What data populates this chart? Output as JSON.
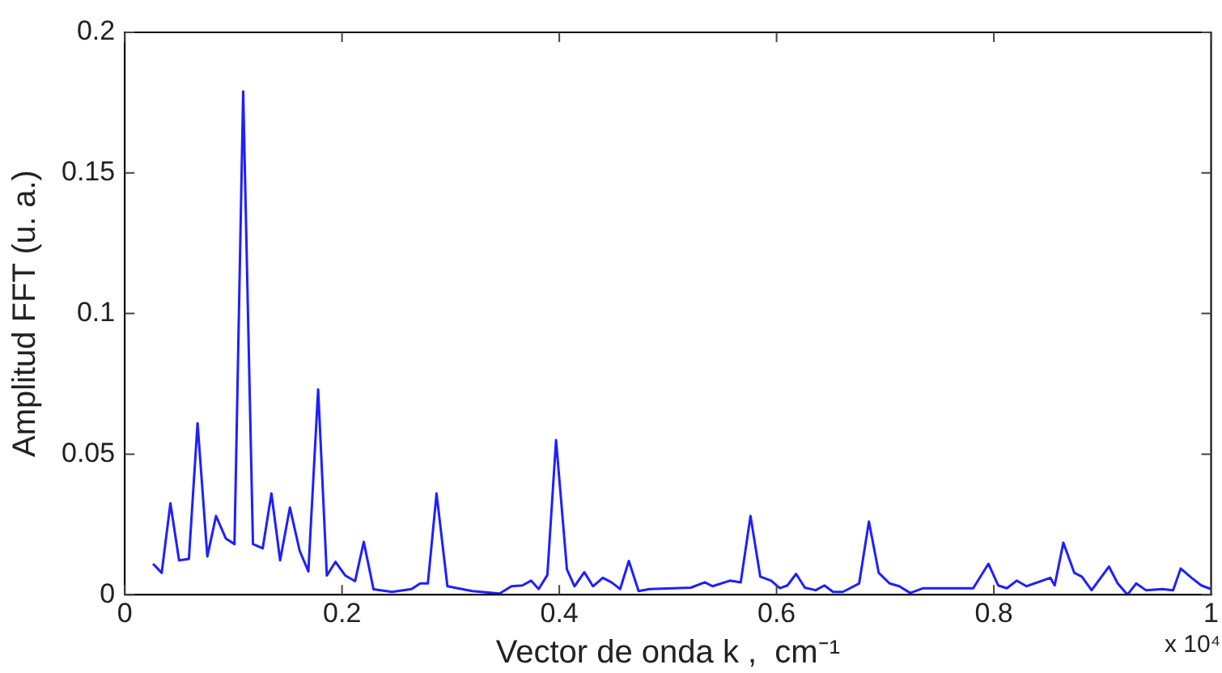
{
  "chart_data": {
    "type": "line",
    "xlabel": "Vector de onda k ,  cm⁻¹",
    "ylabel": "Amplitud FFT (u. a.)",
    "annotations": [
      "x 10⁴"
    ],
    "x": [
      0.026,
      0.034,
      0.042,
      0.05,
      0.059,
      0.067,
      0.076,
      0.084,
      0.093,
      0.101,
      0.109,
      0.118,
      0.127,
      0.135,
      0.143,
      0.152,
      0.161,
      0.169,
      0.178,
      0.186,
      0.194,
      0.203,
      0.212,
      0.22,
      0.229,
      0.246,
      0.264,
      0.272,
      0.279,
      0.287,
      0.297,
      0.32,
      0.345,
      0.356,
      0.366,
      0.374,
      0.381,
      0.389,
      0.397,
      0.407,
      0.414,
      0.423,
      0.431,
      0.44,
      0.448,
      0.456,
      0.464,
      0.473,
      0.483,
      0.521,
      0.534,
      0.541,
      0.557,
      0.567,
      0.576,
      0.585,
      0.595,
      0.603,
      0.61,
      0.618,
      0.626,
      0.636,
      0.644,
      0.652,
      0.661,
      0.676,
      0.685,
      0.694,
      0.704,
      0.713,
      0.723,
      0.735,
      0.781,
      0.795,
      0.804,
      0.812,
      0.821,
      0.83,
      0.852,
      0.856,
      0.864,
      0.874,
      0.881,
      0.89,
      0.906,
      0.914,
      0.923,
      0.931,
      0.94,
      0.955,
      0.965,
      0.972,
      0.982,
      0.991,
      1.0
    ],
    "series": [
      {
        "color": "#1f1fff",
        "values": [
          0.011,
          0.0078,
          0.0325,
          0.0122,
          0.0127,
          0.061,
          0.0136,
          0.028,
          0.02,
          0.018,
          0.179,
          0.018,
          0.0165,
          0.036,
          0.0122,
          0.031,
          0.0156,
          0.0083,
          0.073,
          0.0068,
          0.0117,
          0.0068,
          0.0048,
          0.0188,
          0.0019,
          0.001,
          0.002,
          0.004,
          0.004,
          0.036,
          0.003,
          0.0013,
          0.0004,
          0.003,
          0.0033,
          0.005,
          0.002,
          0.007,
          0.055,
          0.009,
          0.003,
          0.008,
          0.003,
          0.006,
          0.0044,
          0.002,
          0.012,
          0.0013,
          0.002,
          0.0025,
          0.0044,
          0.003,
          0.005,
          0.0044,
          0.028,
          0.0064,
          0.005,
          0.0023,
          0.0033,
          0.0074,
          0.0025,
          0.0016,
          0.0033,
          0.001,
          0.001,
          0.004,
          0.026,
          0.0078,
          0.004,
          0.003,
          0.0006,
          0.0023,
          0.0023,
          0.011,
          0.0033,
          0.0023,
          0.005,
          0.003,
          0.006,
          0.0033,
          0.0185,
          0.0078,
          0.0064,
          0.0016,
          0.01,
          0.004,
          0.0,
          0.004,
          0.0016,
          0.002,
          0.0016,
          0.0093,
          0.006,
          0.0033,
          0.002
        ]
      }
    ],
    "xlim": [
      0,
      1
    ],
    "xticks": [
      0,
      0.2,
      0.4,
      0.6,
      0.8,
      1
    ],
    "ylim": [
      0,
      0.2
    ],
    "yticks": [
      0,
      0.05,
      0.1,
      0.15,
      0.2
    ],
    "grid": false,
    "legend": false,
    "marker": "none",
    "line_style": "solid"
  }
}
